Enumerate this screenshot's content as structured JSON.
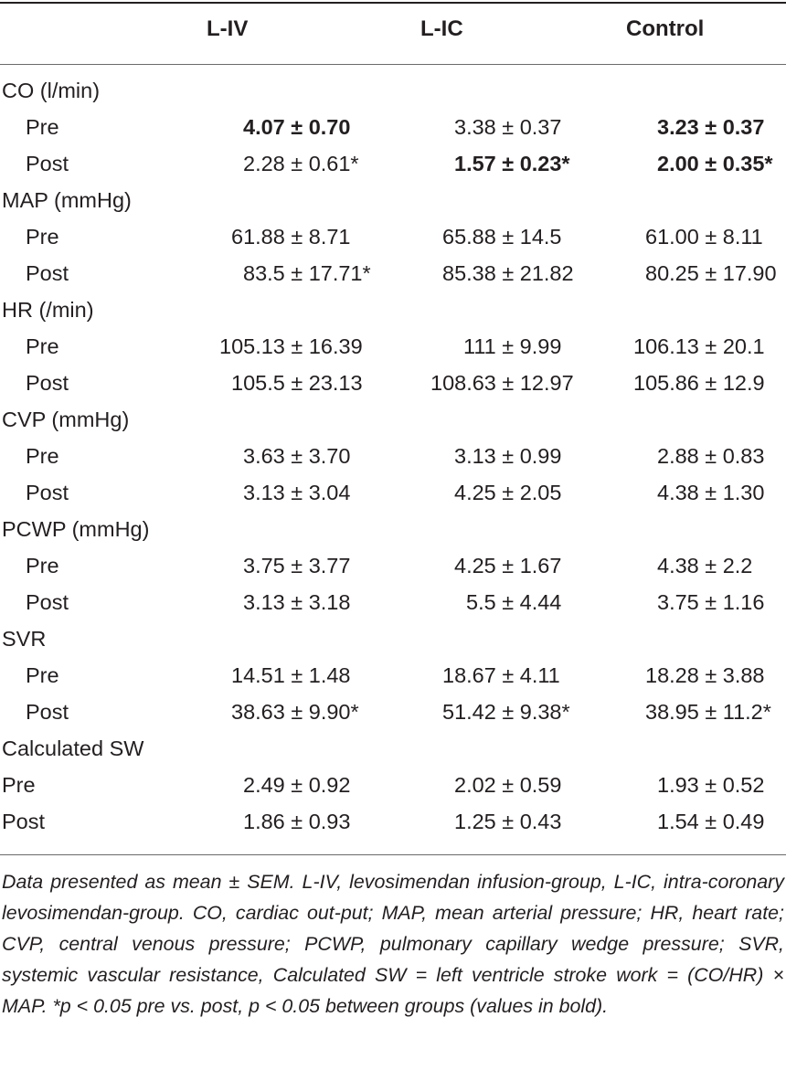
{
  "table": {
    "headers": [
      "L-IV",
      "L-IC",
      "Control"
    ],
    "rows": [
      {
        "label": "CO (l/min)",
        "type": "group"
      },
      {
        "label": "Pre",
        "type": "sub",
        "cells": [
          "4.07 ± 0.70",
          "3.38 ± 0.37",
          "3.23 ± 0.37"
        ],
        "bold": [
          true,
          false,
          true
        ]
      },
      {
        "label": "Post",
        "type": "sub",
        "cells": [
          "2.28 ± 0.61*",
          "1.57 ± 0.23*",
          "2.00 ± 0.35*"
        ],
        "bold": [
          false,
          true,
          true
        ]
      },
      {
        "label": "MAP (mmHg)",
        "type": "group"
      },
      {
        "label": "Pre",
        "type": "sub",
        "cells": [
          "61.88 ± 8.71",
          "65.88 ± 14.5",
          "61.00 ± 8.11"
        ]
      },
      {
        "label": "Post",
        "type": "sub",
        "cells": [
          "83.5 ± 17.71*",
          "85.38 ± 21.82",
          "80.25 ± 17.90"
        ]
      },
      {
        "label": "HR (/min)",
        "type": "group"
      },
      {
        "label": "Pre",
        "type": "sub",
        "cells": [
          "105.13 ± 16.39",
          "111 ± 9.99",
          "106.13 ± 20.1"
        ]
      },
      {
        "label": "Post",
        "type": "sub",
        "cells": [
          "105.5 ± 23.13",
          "108.63 ± 12.97",
          "105.86 ± 12.9"
        ]
      },
      {
        "label": "CVP (mmHg)",
        "type": "group"
      },
      {
        "label": "Pre",
        "type": "sub",
        "cells": [
          "3.63 ± 3.70",
          "3.13 ± 0.99",
          "2.88 ± 0.83"
        ]
      },
      {
        "label": "Post",
        "type": "sub",
        "cells": [
          "3.13 ± 3.04",
          "4.25 ± 2.05",
          "4.38 ± 1.30"
        ]
      },
      {
        "label": "PCWP (mmHg)",
        "type": "group"
      },
      {
        "label": "Pre",
        "type": "sub",
        "cells": [
          "3.75 ± 3.77",
          "4.25 ± 1.67",
          "4.38 ± 2.2"
        ]
      },
      {
        "label": "Post",
        "type": "sub",
        "cells": [
          "3.13 ± 3.18",
          "5.5 ± 4.44",
          "3.75 ± 1.16"
        ]
      },
      {
        "label": "SVR",
        "type": "group"
      },
      {
        "label": "Pre",
        "type": "sub",
        "cells": [
          "14.51 ± 1.48",
          "18.67 ± 4.11",
          "18.28 ± 3.88"
        ]
      },
      {
        "label": "Post",
        "type": "sub",
        "cells": [
          "38.63 ± 9.90*",
          "51.42 ± 9.38*",
          "38.95 ± 11.2*"
        ]
      },
      {
        "label": "Calculated SW",
        "type": "group"
      },
      {
        "label": "Pre",
        "type": "plain",
        "cells": [
          "2.49 ± 0.92",
          "2.02 ± 0.59",
          "1.93 ± 0.52"
        ]
      },
      {
        "label": "Post",
        "type": "plain",
        "cells": [
          "1.86 ± 0.93",
          "1.25 ± 0.43",
          "1.54 ± 0.49"
        ]
      }
    ]
  },
  "footnote": "Data presented as mean ± SEM. L-IV, levosimendan infusion-group, L-IC, intra-coronary levosimendan-group. CO, cardiac out-put; MAP, mean arterial pressure; HR, heart rate; CVP, central venous pressure; PCWP, pulmonary capillary wedge pressure; SVR, systemic vascular resistance, Calculated SW = left ventricle stroke work = (CO/HR) × MAP. *p < 0.05 pre vs. post, p < 0.05 between groups (values in bold)."
}
